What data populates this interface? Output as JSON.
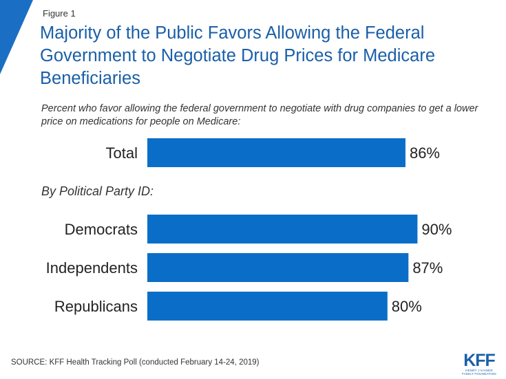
{
  "figure_label": "Figure 1",
  "title": "Majority of the Public Favors Allowing the Federal Government to Negotiate Drug Prices for Medicare Beneficiaries",
  "subtitle": "Percent who favor allowing the federal government to negotiate with drug companies to get a lower price on medications for people on Medicare:",
  "section_label": "By Political Party ID:",
  "source": "SOURCE: KFF Health Tracking Poll (conducted February 14-24, 2019)",
  "logo": {
    "mark": "KFF",
    "sub": "HENRY J KAISER\nFAMILY FOUNDATION"
  },
  "colors": {
    "bar": "#0a6ec8",
    "accent": "#1a6fc4",
    "title": "#1a5fa8"
  },
  "chart_data": {
    "type": "bar",
    "orientation": "horizontal",
    "categories": [
      "Total",
      "Democrats",
      "Independents",
      "Republicans"
    ],
    "values": [
      86,
      90,
      87,
      80
    ],
    "data_labels": [
      "86%",
      "90%",
      "87%",
      "80%"
    ],
    "unit": "%",
    "xlim": [
      0,
      100
    ],
    "grid": false,
    "legend": "none"
  }
}
